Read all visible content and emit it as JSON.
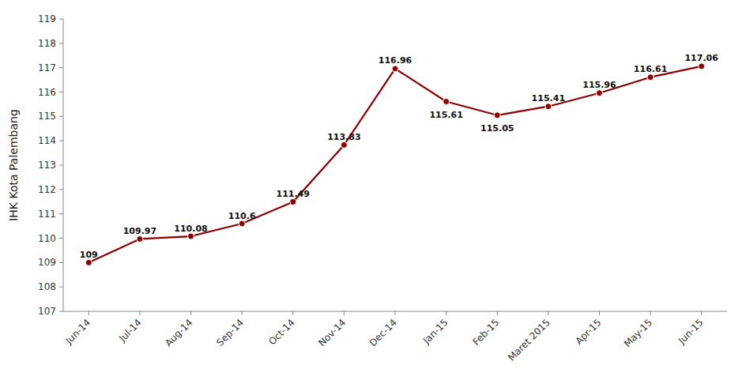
{
  "chart_data": {
    "type": "line",
    "categories": [
      "Jun-14",
      "Jul-14",
      "Aug-14",
      "Sep-14",
      "Oct-14",
      "Nov-14",
      "Dec-14",
      "Jan-15",
      "Feb-15",
      "Maret 2015",
      "Apr-15",
      "May-15",
      "Jun-15"
    ],
    "values": [
      109,
      109.97,
      110.08,
      110.6,
      111.49,
      113.83,
      116.96,
      115.61,
      115.05,
      115.41,
      115.96,
      116.61,
      117.06
    ],
    "y_label": "IHK Kota Palembang",
    "ylim": [
      107,
      119
    ],
    "yticks": [
      107,
      108,
      109,
      110,
      111,
      112,
      113,
      114,
      115,
      116,
      117,
      118,
      119
    ],
    "color": "#8B0000",
    "marker": "circle",
    "data_labels": true,
    "grid": false
  }
}
